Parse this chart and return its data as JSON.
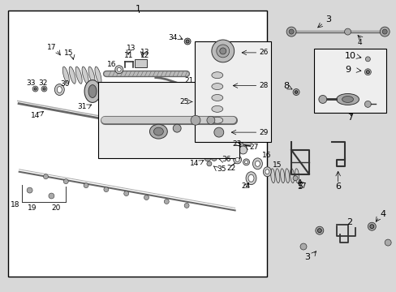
{
  "bg_color": "#d8d8d8",
  "white": "#ffffff",
  "light_gray": "#eeeeee",
  "dark": "#333333",
  "mid": "#666666",
  "line": "#000000",
  "fs": 6.5,
  "fs_big": 8
}
